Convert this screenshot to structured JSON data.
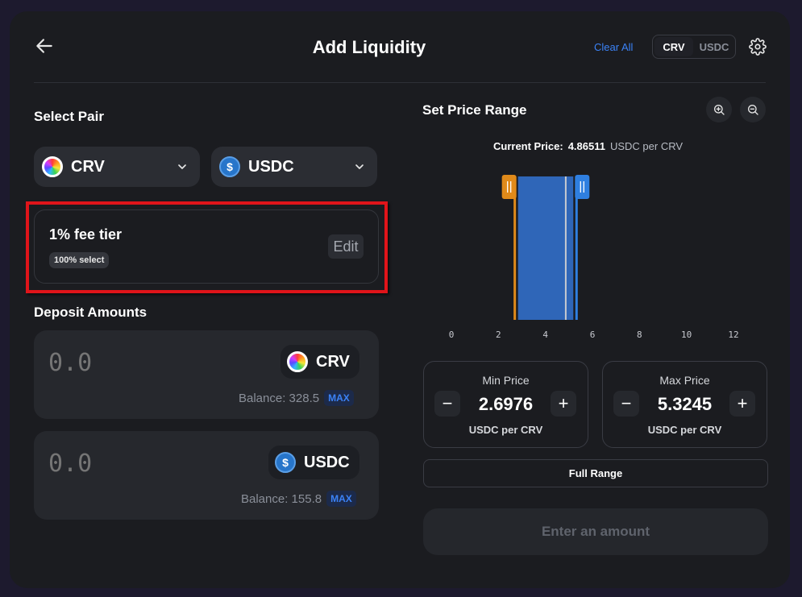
{
  "header": {
    "title": "Add Liquidity",
    "clear_all": "Clear All",
    "toggle": [
      "CRV",
      "USDC"
    ],
    "toggle_active": "CRV"
  },
  "select_pair": {
    "label": "Select Pair",
    "token_a": "CRV",
    "token_b": "USDC"
  },
  "fee": {
    "title": "1% fee tier",
    "badge": "100% select",
    "edit": "Edit"
  },
  "deposit": {
    "label": "Deposit Amounts",
    "items": [
      {
        "placeholder": "0.0",
        "token": "CRV",
        "balance": "Balance: 328.5",
        "max": "MAX"
      },
      {
        "placeholder": "0.0",
        "token": "USDC",
        "balance": "Balance: 155.8",
        "max": "MAX"
      }
    ]
  },
  "range": {
    "label": "Set Price Range",
    "current_price_label": "Current Price:",
    "current_price_value": "4.86511",
    "current_price_unit": "USDC per CRV",
    "axis_ticks": [
      "0",
      "2",
      "4",
      "6",
      "8",
      "10",
      "12"
    ],
    "min_price": {
      "label": "Min Price",
      "value": "2.6976",
      "unit": "USDC per CRV"
    },
    "max_price": {
      "label": "Max Price",
      "value": "5.3245",
      "unit": "USDC per CRV"
    },
    "full_range": "Full Range",
    "submit": "Enter an amount"
  },
  "colors": {
    "accent": "#3b82f6",
    "min_handle": "#e08a1a",
    "max_handle": "#2f7fe0",
    "range_fill": "#2f66b8",
    "highlight": "#e0141a"
  }
}
